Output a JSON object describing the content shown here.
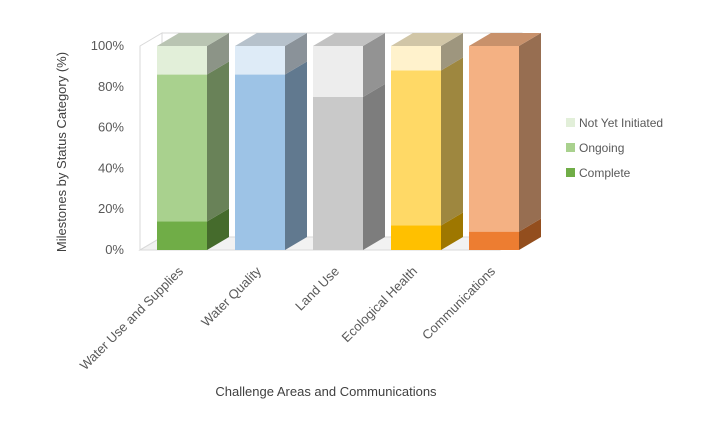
{
  "chart_data": {
    "type": "bar",
    "stacked": true,
    "three_d": true,
    "categories": [
      "Water Use and Supplies",
      "Water Quality",
      "Land Use",
      "Ecological Health",
      "Communications"
    ],
    "series": [
      {
        "name": "Complete",
        "values": [
          14,
          0,
          0,
          12,
          9
        ]
      },
      {
        "name": "Ongoing",
        "values": [
          72,
          86,
          75,
          76,
          91
        ]
      },
      {
        "name": "Not Yet Initiated",
        "values": [
          14,
          14,
          25,
          12,
          0
        ]
      }
    ],
    "bar_colors": [
      {
        "complete": "#70ad47",
        "ongoing": "#a9d18e",
        "not_yet": "#e2efd9"
      },
      {
        "complete": "#5b9bd5",
        "ongoing": "#9dc3e6",
        "not_yet": "#deebf7"
      },
      {
        "complete": "#a5a5a5",
        "ongoing": "#c9c9c9",
        "not_yet": "#ededed"
      },
      {
        "complete": "#ffc000",
        "ongoing": "#ffd966",
        "not_yet": "#fff2cc"
      },
      {
        "complete": "#ed7d31",
        "ongoing": "#f4b183",
        "not_yet": "#fbe5d6"
      }
    ],
    "legend_colors": {
      "Complete": "#70ad47",
      "Ongoing": "#a9d18e",
      "Not Yet Initiated": "#e2efd9"
    },
    "xlabel": "Challenge Areas and Communications",
    "ylabel": "Milestones by Status Category (%)",
    "ylim": [
      0,
      100
    ],
    "yticks": [
      "0%",
      "20%",
      "40%",
      "60%",
      "80%",
      "100%"
    ],
    "legend_position": "right",
    "grid": false
  }
}
